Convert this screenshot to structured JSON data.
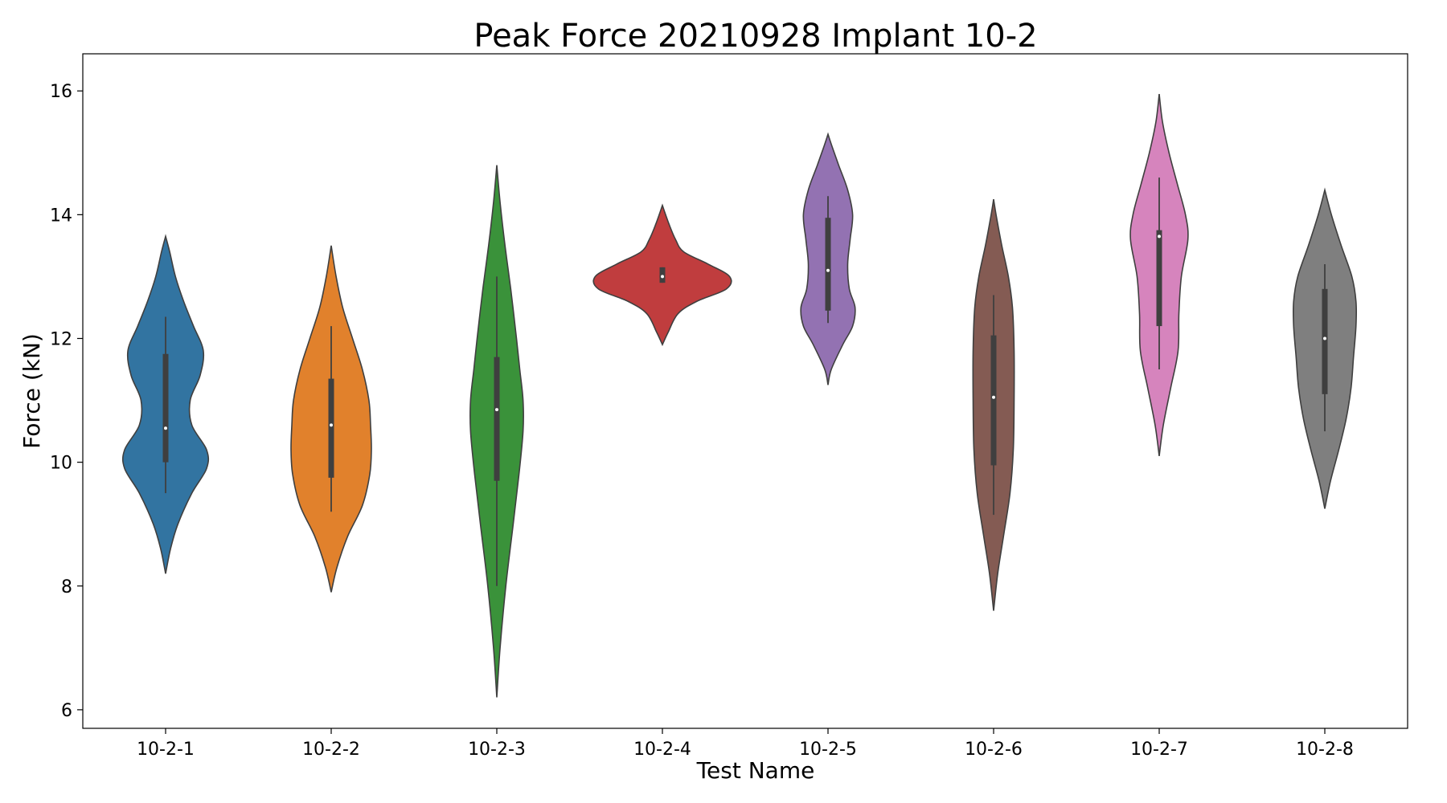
{
  "chart_data": {
    "type": "violin",
    "title": "Peak Force 20210928 Implant 10-2",
    "xlabel": "Test Name",
    "ylabel": "Force (kN)",
    "ylim": [
      5.7,
      16.6
    ],
    "yticks": [
      6,
      8,
      10,
      12,
      14,
      16
    ],
    "grid": false,
    "categories": [
      "10-2-1",
      "10-2-2",
      "10-2-3",
      "10-2-4",
      "10-2-5",
      "10-2-6",
      "10-2-7",
      "10-2-8"
    ],
    "series": [
      {
        "color": "#3274a1",
        "range": [
          8.2,
          13.65
        ],
        "whisker": [
          9.5,
          12.35
        ],
        "q1": 10.0,
        "median": 10.55,
        "q3": 11.75,
        "density": [
          [
            8.2,
            0
          ],
          [
            8.6,
            0.06
          ],
          [
            9.0,
            0.15
          ],
          [
            9.5,
            0.32
          ],
          [
            9.9,
            0.5
          ],
          [
            10.2,
            0.5
          ],
          [
            10.6,
            0.32
          ],
          [
            11.0,
            0.3
          ],
          [
            11.4,
            0.42
          ],
          [
            11.8,
            0.46
          ],
          [
            12.2,
            0.34
          ],
          [
            12.6,
            0.22
          ],
          [
            13.0,
            0.12
          ],
          [
            13.4,
            0.05
          ],
          [
            13.65,
            0
          ]
        ]
      },
      {
        "color": "#e1812c",
        "range": [
          7.9,
          13.5
        ],
        "whisker": [
          9.2,
          12.2
        ],
        "q1": 9.75,
        "median": 10.6,
        "q3": 11.35,
        "density": [
          [
            7.9,
            0
          ],
          [
            8.3,
            0.07
          ],
          [
            8.8,
            0.2
          ],
          [
            9.3,
            0.38
          ],
          [
            9.8,
            0.47
          ],
          [
            10.2,
            0.49
          ],
          [
            10.6,
            0.48
          ],
          [
            11.0,
            0.46
          ],
          [
            11.5,
            0.38
          ],
          [
            12.0,
            0.26
          ],
          [
            12.5,
            0.14
          ],
          [
            13.0,
            0.06
          ],
          [
            13.5,
            0
          ]
        ]
      },
      {
        "color": "#3a923a",
        "range": [
          6.2,
          14.8
        ],
        "whisker": [
          8.0,
          13.0
        ],
        "q1": 9.7,
        "median": 10.85,
        "q3": 11.7,
        "density": [
          [
            6.2,
            0
          ],
          [
            7.0,
            0.04
          ],
          [
            8.0,
            0.11
          ],
          [
            9.0,
            0.2
          ],
          [
            9.8,
            0.27
          ],
          [
            10.5,
            0.32
          ],
          [
            11.0,
            0.32
          ],
          [
            11.5,
            0.28
          ],
          [
            12.0,
            0.24
          ],
          [
            12.8,
            0.17
          ],
          [
            13.5,
            0.1
          ],
          [
            14.2,
            0.04
          ],
          [
            14.8,
            0
          ]
        ]
      },
      {
        "color": "#c03d3e",
        "range": [
          11.9,
          14.15
        ],
        "whisker": [
          12.9,
          13.15
        ],
        "q1": 12.9,
        "median": 13.0,
        "q3": 13.15,
        "density": [
          [
            11.9,
            0
          ],
          [
            12.1,
            0.07
          ],
          [
            12.4,
            0.19
          ],
          [
            12.6,
            0.42
          ],
          [
            12.8,
            0.78
          ],
          [
            13.0,
            0.82
          ],
          [
            13.2,
            0.56
          ],
          [
            13.4,
            0.26
          ],
          [
            13.6,
            0.16
          ],
          [
            13.85,
            0.08
          ],
          [
            14.15,
            0
          ]
        ]
      },
      {
        "color": "#9372b2",
        "range": [
          11.25,
          15.3
        ],
        "whisker": [
          12.25,
          14.3
        ],
        "q1": 12.45,
        "median": 13.1,
        "q3": 13.95,
        "density": [
          [
            11.25,
            0
          ],
          [
            11.5,
            0.04
          ],
          [
            11.9,
            0.18
          ],
          [
            12.2,
            0.3
          ],
          [
            12.5,
            0.33
          ],
          [
            12.8,
            0.26
          ],
          [
            13.2,
            0.24
          ],
          [
            13.6,
            0.27
          ],
          [
            14.0,
            0.3
          ],
          [
            14.4,
            0.24
          ],
          [
            14.8,
            0.13
          ],
          [
            15.1,
            0.05
          ],
          [
            15.3,
            0
          ]
        ]
      },
      {
        "color": "#845b53",
        "range": [
          7.6,
          14.25
        ],
        "whisker": [
          9.15,
          12.7
        ],
        "q1": 9.95,
        "median": 11.05,
        "q3": 12.05,
        "density": [
          [
            7.6,
            0
          ],
          [
            8.2,
            0.05
          ],
          [
            8.8,
            0.12
          ],
          [
            9.5,
            0.2
          ],
          [
            10.2,
            0.24
          ],
          [
            11.0,
            0.25
          ],
          [
            11.8,
            0.25
          ],
          [
            12.5,
            0.23
          ],
          [
            13.0,
            0.18
          ],
          [
            13.5,
            0.1
          ],
          [
            14.0,
            0.03
          ],
          [
            14.25,
            0
          ]
        ]
      },
      {
        "color": "#d684bd",
        "range": [
          10.1,
          15.95
        ],
        "whisker": [
          11.5,
          14.6
        ],
        "q1": 12.2,
        "median": 13.65,
        "q3": 13.75,
        "density": [
          [
            10.1,
            0
          ],
          [
            10.6,
            0.05
          ],
          [
            11.2,
            0.14
          ],
          [
            11.8,
            0.23
          ],
          [
            12.4,
            0.24
          ],
          [
            13.0,
            0.27
          ],
          [
            13.6,
            0.35
          ],
          [
            14.0,
            0.32
          ],
          [
            14.5,
            0.22
          ],
          [
            15.0,
            0.12
          ],
          [
            15.5,
            0.04
          ],
          [
            15.95,
            0
          ]
        ]
      },
      {
        "color": "#7f7f7f",
        "range": [
          9.25,
          14.4
        ],
        "whisker": [
          10.5,
          13.2
        ],
        "q1": 11.1,
        "median": 12.0,
        "q3": 12.8,
        "density": [
          [
            9.25,
            0
          ],
          [
            9.7,
            0.07
          ],
          [
            10.2,
            0.17
          ],
          [
            10.7,
            0.26
          ],
          [
            11.2,
            0.32
          ],
          [
            11.7,
            0.35
          ],
          [
            12.2,
            0.38
          ],
          [
            12.6,
            0.38
          ],
          [
            13.0,
            0.33
          ],
          [
            13.5,
            0.2
          ],
          [
            14.0,
            0.08
          ],
          [
            14.4,
            0
          ]
        ]
      }
    ]
  }
}
